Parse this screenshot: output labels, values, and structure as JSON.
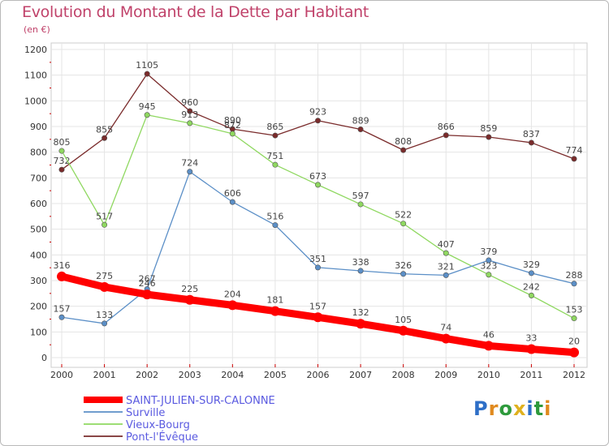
{
  "header": {
    "title": "Evolution du Montant de la Dette par Habitant",
    "unit": "(en €)"
  },
  "brand": {
    "letters": [
      "P",
      "r",
      "o",
      "x",
      "i",
      "t",
      "i"
    ],
    "colors": [
      "#2e6fc7",
      "#e08a1e",
      "#2e9a3c",
      "#e0b11e",
      "#2e6fc7",
      "#2e9a3c",
      "#e08a1e"
    ]
  },
  "chart_data": {
    "type": "line",
    "title": "Evolution du Montant de la Dette par Habitant",
    "ylabel": "(en €)",
    "xlabel": "",
    "x": [
      "2000",
      "2001",
      "2002",
      "2003",
      "2004",
      "2005",
      "2006",
      "2007",
      "2008",
      "2009",
      "2010",
      "2011",
      "2012"
    ],
    "ylim": [
      0,
      1200
    ],
    "yticks": [
      0,
      100,
      200,
      300,
      400,
      500,
      600,
      700,
      800,
      900,
      1000,
      1100,
      1200
    ],
    "grid": true,
    "legend_position": "bottom-left",
    "series": [
      {
        "name": "SAINT-JULIEN-SUR-CALONNE",
        "color": "#ff0000",
        "values": [
          316,
          275,
          246,
          225,
          204,
          181,
          157,
          132,
          105,
          74,
          46,
          33,
          20
        ]
      },
      {
        "name": "Surville",
        "color": "#5b8fc7",
        "values": [
          157,
          133,
          267,
          724,
          606,
          516,
          351,
          338,
          326,
          321,
          379,
          329,
          288
        ]
      },
      {
        "name": "Vieux-Bourg",
        "color": "#8fd860",
        "values": [
          805,
          517,
          945,
          913,
          872,
          751,
          673,
          597,
          522,
          407,
          323,
          242,
          153
        ]
      },
      {
        "name": "Pont-l'Évêque",
        "color": "#7a2b2b",
        "values": [
          732,
          855,
          1105,
          960,
          890,
          865,
          923,
          889,
          808,
          866,
          859,
          837,
          774
        ]
      }
    ]
  }
}
